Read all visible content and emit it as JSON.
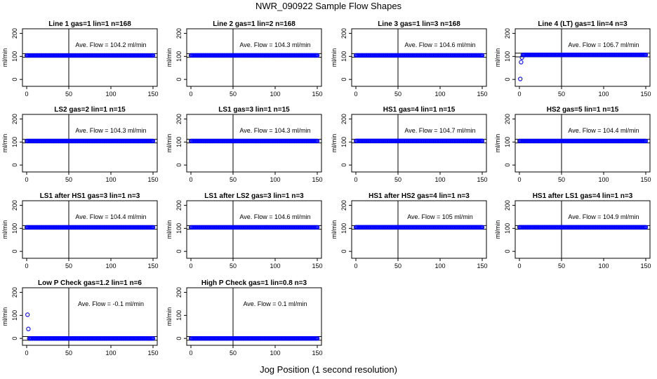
{
  "figure": {
    "title": "NWR_090922  Sample Flow Shapes",
    "xlabel": "Jog Position (1 second resolution)"
  },
  "colors": {
    "points": "#0000ff",
    "lines": "#000000",
    "background": "#ffffff"
  },
  "chart_data": [
    {
      "type": "scatter",
      "title": "Line 1 gas=1 lin=1 n=168",
      "ylabel": "ml/min",
      "annotation": "Ave. Flow =  104.2  ml/min",
      "xlim": [
        0,
        150
      ],
      "ylim": [
        -30,
        220
      ],
      "xticks": [
        0,
        50,
        100,
        150
      ],
      "yticks": [
        0,
        100,
        200
      ],
      "hlines": [
        96,
        112
      ],
      "vline": 50,
      "x_range": [
        0,
        150
      ],
      "steady": 104.2,
      "start_points": []
    },
    {
      "type": "scatter",
      "title": "Line 2 gas=1 lin=2 n=168",
      "ylabel": "ml/min",
      "annotation": "Ave. Flow =  104.3  ml/min",
      "xlim": [
        0,
        150
      ],
      "ylim": [
        -30,
        220
      ],
      "xticks": [
        0,
        50,
        100,
        150
      ],
      "yticks": [
        0,
        100,
        200
      ],
      "hlines": [
        96,
        112
      ],
      "vline": 50,
      "x_range": [
        0,
        150
      ],
      "steady": 104.3,
      "start_points": []
    },
    {
      "type": "scatter",
      "title": "Line 3 gas=1 lin=3 n=168",
      "ylabel": "ml/min",
      "annotation": "Ave. Flow =  104.6  ml/min",
      "xlim": [
        0,
        150
      ],
      "ylim": [
        -30,
        220
      ],
      "xticks": [
        0,
        50,
        100,
        150
      ],
      "yticks": [
        0,
        100,
        200
      ],
      "hlines": [
        96,
        112
      ],
      "vline": 50,
      "x_range": [
        0,
        150
      ],
      "steady": 104.6,
      "start_points": []
    },
    {
      "type": "scatter",
      "title": "Line 4 (LT) gas=1 lin=4 n=3",
      "ylabel": "ml/min",
      "annotation": "Ave. Flow =  106.7  ml/min",
      "xlim": [
        0,
        150
      ],
      "ylim": [
        -30,
        220
      ],
      "xticks": [
        0,
        50,
        100,
        150
      ],
      "yticks": [
        0,
        100,
        200
      ],
      "hlines": [
        98,
        114
      ],
      "vline": 50,
      "x_range": [
        4,
        150
      ],
      "steady": 106.7,
      "start_points": [
        [
          1,
          2
        ],
        [
          2,
          75
        ],
        [
          3,
          95
        ]
      ]
    },
    {
      "type": "scatter",
      "title": "LS2 gas=2 lin=1 n=15",
      "ylabel": "ml/min",
      "annotation": "Ave. Flow =  104.3  ml/min",
      "xlim": [
        0,
        150
      ],
      "ylim": [
        -30,
        220
      ],
      "xticks": [
        0,
        50,
        100,
        150
      ],
      "yticks": [
        0,
        100,
        200
      ],
      "hlines": [
        96,
        112
      ],
      "vline": 50,
      "x_range": [
        0,
        150
      ],
      "steady": 104.3,
      "start_points": []
    },
    {
      "type": "scatter",
      "title": "LS1 gas=3 lin=1 n=15",
      "ylabel": "ml/min",
      "annotation": "Ave. Flow =  104.3  ml/min",
      "xlim": [
        0,
        150
      ],
      "ylim": [
        -30,
        220
      ],
      "xticks": [
        0,
        50,
        100,
        150
      ],
      "yticks": [
        0,
        100,
        200
      ],
      "hlines": [
        96,
        112
      ],
      "vline": 50,
      "x_range": [
        0,
        150
      ],
      "steady": 104.3,
      "start_points": []
    },
    {
      "type": "scatter",
      "title": "HS1 gas=4 lin=1 n=15",
      "ylabel": "ml/min",
      "annotation": "Ave. Flow =  104.7  ml/min",
      "xlim": [
        0,
        150
      ],
      "ylim": [
        -30,
        220
      ],
      "xticks": [
        0,
        50,
        100,
        150
      ],
      "yticks": [
        0,
        100,
        200
      ],
      "hlines": [
        96,
        112
      ],
      "vline": 50,
      "x_range": [
        0,
        150
      ],
      "steady": 104.7,
      "start_points": []
    },
    {
      "type": "scatter",
      "title": "HS2 gas=5 lin=1 n=15",
      "ylabel": "ml/min",
      "annotation": "Ave. Flow =  104.4  ml/min",
      "xlim": [
        0,
        150
      ],
      "ylim": [
        -30,
        220
      ],
      "xticks": [
        0,
        50,
        100,
        150
      ],
      "yticks": [
        0,
        100,
        200
      ],
      "hlines": [
        96,
        112
      ],
      "vline": 50,
      "x_range": [
        0,
        150
      ],
      "steady": 104.4,
      "start_points": []
    },
    {
      "type": "scatter",
      "title": "LS1 after HS1 gas=3 lin=1 n=3",
      "ylabel": "ml/min",
      "annotation": "Ave. Flow =  104.4  ml/min",
      "xlim": [
        0,
        150
      ],
      "ylim": [
        -30,
        220
      ],
      "xticks": [
        0,
        50,
        100,
        150
      ],
      "yticks": [
        0,
        100,
        200
      ],
      "hlines": [
        96,
        112
      ],
      "vline": 50,
      "x_range": [
        0,
        150
      ],
      "steady": 104.4,
      "start_points": []
    },
    {
      "type": "scatter",
      "title": "LS1 after LS2 gas=3 lin=1 n=3",
      "ylabel": "ml/min",
      "annotation": "Ave. Flow =  104.6  ml/min",
      "xlim": [
        0,
        150
      ],
      "ylim": [
        -30,
        220
      ],
      "xticks": [
        0,
        50,
        100,
        150
      ],
      "yticks": [
        0,
        100,
        200
      ],
      "hlines": [
        96,
        112
      ],
      "vline": 50,
      "x_range": [
        0,
        150
      ],
      "steady": 104.6,
      "start_points": []
    },
    {
      "type": "scatter",
      "title": "HS1 after HS2 gas=4 lin=1 n=3",
      "ylabel": "ml/min",
      "annotation": "Ave. Flow =  105  ml/min",
      "xlim": [
        0,
        150
      ],
      "ylim": [
        -30,
        220
      ],
      "xticks": [
        0,
        50,
        100,
        150
      ],
      "yticks": [
        0,
        100,
        200
      ],
      "hlines": [
        96,
        112
      ],
      "vline": 50,
      "x_range": [
        0,
        150
      ],
      "steady": 105,
      "start_points": []
    },
    {
      "type": "scatter",
      "title": "HS1 after LS1 gas=4 lin=1 n=3",
      "ylabel": "ml/min",
      "annotation": "Ave. Flow =  104.9  ml/min",
      "xlim": [
        0,
        150
      ],
      "ylim": [
        -30,
        220
      ],
      "xticks": [
        0,
        50,
        100,
        150
      ],
      "yticks": [
        0,
        100,
        200
      ],
      "hlines": [
        96,
        112
      ],
      "vline": 50,
      "x_range": [
        0,
        150
      ],
      "steady": 104.9,
      "start_points": []
    },
    {
      "type": "scatter",
      "title": "Low P Check gas=1.2 lin=1 n=6",
      "ylabel": "ml/min",
      "annotation": "Ave. Flow =  -0.1  ml/min",
      "xlim": [
        0,
        150
      ],
      "ylim": [
        -30,
        220
      ],
      "xticks": [
        0,
        50,
        100,
        150
      ],
      "yticks": [
        0,
        100,
        200
      ],
      "hlines": [
        -8,
        8
      ],
      "vline": 50,
      "x_range": [
        3,
        150
      ],
      "steady": -0.1,
      "start_points": [
        [
          1,
          103
        ],
        [
          2,
          41
        ]
      ]
    },
    {
      "type": "scatter",
      "title": "High P Check gas=1 lin=0.8 n=3",
      "ylabel": "ml/min",
      "annotation": "Ave. Flow =  0.1  ml/min",
      "xlim": [
        0,
        150
      ],
      "ylim": [
        -30,
        220
      ],
      "xticks": [
        0,
        50,
        100,
        150
      ],
      "yticks": [
        0,
        100,
        200
      ],
      "hlines": [
        -8,
        8
      ],
      "vline": 50,
      "x_range": [
        0,
        150
      ],
      "steady": 0.1,
      "start_points": []
    }
  ]
}
